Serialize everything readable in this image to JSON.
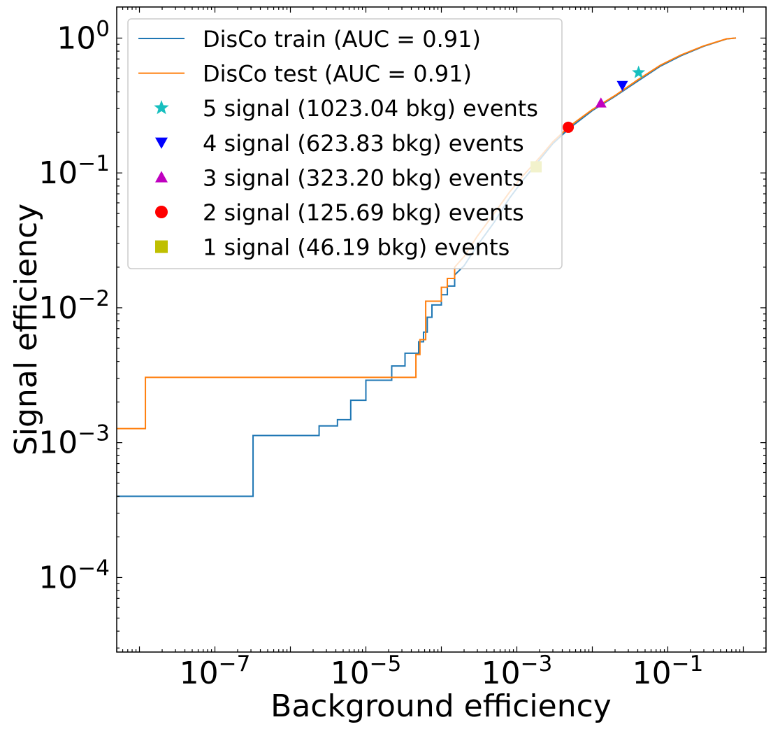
{
  "chart_data": {
    "type": "line",
    "title": "",
    "xlabel": "Background efficiency",
    "ylabel": "Signal efficiency",
    "xscale": "log",
    "yscale": "log",
    "xlim": [
      5e-09,
      2.0
    ],
    "ylim": [
      2.8e-05,
      1.7
    ],
    "grid": false,
    "legend_position": "upper-left",
    "x_ticks": [
      {
        "value": 1e-07,
        "base": "10",
        "exp": "−7"
      },
      {
        "value": 1e-05,
        "base": "10",
        "exp": "−5"
      },
      {
        "value": 0.001,
        "base": "10",
        "exp": "−3"
      },
      {
        "value": 0.1,
        "base": "10",
        "exp": "−1"
      }
    ],
    "y_ticks": [
      {
        "value": 0.0001,
        "base": "10",
        "exp": "−4"
      },
      {
        "value": 0.001,
        "base": "10",
        "exp": "−3"
      },
      {
        "value": 0.01,
        "base": "10",
        "exp": "−2"
      },
      {
        "value": 0.1,
        "base": "10",
        "exp": "−1"
      },
      {
        "value": 1,
        "base": "10",
        "exp": "0"
      }
    ],
    "series": [
      {
        "name": "DisCo train (AUC = 0.91)",
        "kind": "step",
        "color": "#1f77b4",
        "points": [
          [
            5e-09,
            0.0004
          ],
          [
            3.2e-07,
            0.0004
          ],
          [
            3.2e-07,
            0.00113
          ],
          [
            2.4e-06,
            0.00113
          ],
          [
            2.4e-06,
            0.00133
          ],
          [
            4.2e-06,
            0.00133
          ],
          [
            4.2e-06,
            0.00148
          ],
          [
            6.3e-06,
            0.00148
          ],
          [
            6.3e-06,
            0.00206
          ],
          [
            1e-05,
            0.00206
          ],
          [
            1e-05,
            0.0029
          ],
          [
            2.2e-05,
            0.0029
          ],
          [
            2.2e-05,
            0.0037
          ],
          [
            3.3e-05,
            0.0037
          ],
          [
            3.3e-05,
            0.0046
          ],
          [
            5e-05,
            0.0046
          ],
          [
            5e-05,
            0.0056
          ],
          [
            5.8e-05,
            0.0056
          ],
          [
            5.8e-05,
            0.0066
          ],
          [
            6.5e-05,
            0.0066
          ],
          [
            6.5e-05,
            0.0085
          ],
          [
            7.5e-05,
            0.0085
          ],
          [
            7.5e-05,
            0.0105
          ],
          [
            0.0001,
            0.0105
          ],
          [
            0.0001,
            0.0125
          ],
          [
            0.00012,
            0.0125
          ],
          [
            0.00012,
            0.0145
          ],
          [
            0.00015,
            0.0145
          ],
          [
            0.00015,
            0.0175
          ],
          [
            0.0002,
            0.0205
          ],
          [
            0.0003,
            0.029
          ],
          [
            0.0005,
            0.043
          ],
          [
            0.0008,
            0.065
          ],
          [
            0.0012,
            0.088
          ],
          [
            0.002,
            0.125
          ],
          [
            0.003,
            0.165
          ],
          [
            0.005,
            0.215
          ],
          [
            0.01,
            0.29
          ],
          [
            0.02,
            0.37
          ],
          [
            0.04,
            0.48
          ],
          [
            0.08,
            0.62
          ],
          [
            0.15,
            0.74
          ],
          [
            0.3,
            0.87
          ],
          [
            0.6,
            0.985
          ],
          [
            0.8,
            1.0
          ]
        ]
      },
      {
        "name": "DisCo test (AUC = 0.91)",
        "kind": "step",
        "color": "#ff7f0e",
        "points": [
          [
            5e-09,
            0.00127
          ],
          [
            1.2e-08,
            0.00127
          ],
          [
            1.2e-08,
            0.00305
          ],
          [
            4.6e-05,
            0.00305
          ],
          [
            4.6e-05,
            0.0045
          ],
          [
            5.2e-05,
            0.0045
          ],
          [
            5.2e-05,
            0.0058
          ],
          [
            6.2e-05,
            0.0058
          ],
          [
            6.2e-05,
            0.0112
          ],
          [
            0.0001,
            0.0112
          ],
          [
            0.0001,
            0.0142
          ],
          [
            0.00012,
            0.0142
          ],
          [
            0.00012,
            0.0165
          ],
          [
            0.00015,
            0.0165
          ],
          [
            0.00015,
            0.02
          ],
          [
            0.0002,
            0.024
          ],
          [
            0.0003,
            0.034
          ],
          [
            0.0005,
            0.05
          ],
          [
            0.0008,
            0.072
          ],
          [
            0.0012,
            0.095
          ],
          [
            0.002,
            0.13
          ],
          [
            0.003,
            0.17
          ],
          [
            0.005,
            0.222
          ],
          [
            0.01,
            0.295
          ],
          [
            0.02,
            0.375
          ],
          [
            0.04,
            0.49
          ],
          [
            0.08,
            0.63
          ],
          [
            0.15,
            0.75
          ],
          [
            0.3,
            0.875
          ],
          [
            0.6,
            0.987
          ],
          [
            0.8,
            1.0
          ]
        ]
      }
    ],
    "markers": [
      {
        "label": "5 signal (1023.04 bkg) events",
        "shape": "star",
        "color": "#17bfbf",
        "x": 0.041,
        "y": 0.555
      },
      {
        "label": "4 signal (623.83 bkg) events",
        "shape": "triangle-down",
        "color": "#0000ff",
        "x": 0.025,
        "y": 0.445
      },
      {
        "label": "3 signal (323.20 bkg) events",
        "shape": "triangle-up",
        "color": "#bf00bf",
        "x": 0.013,
        "y": 0.33
      },
      {
        "label": "2 signal (125.69 bkg) events",
        "shape": "circle",
        "color": "#ff0000",
        "x": 0.0048,
        "y": 0.218
      },
      {
        "label": "1 signal (46.19 bkg) events",
        "shape": "square",
        "color": "#bfbf00",
        "x": 0.0018,
        "y": 0.111
      }
    ]
  }
}
